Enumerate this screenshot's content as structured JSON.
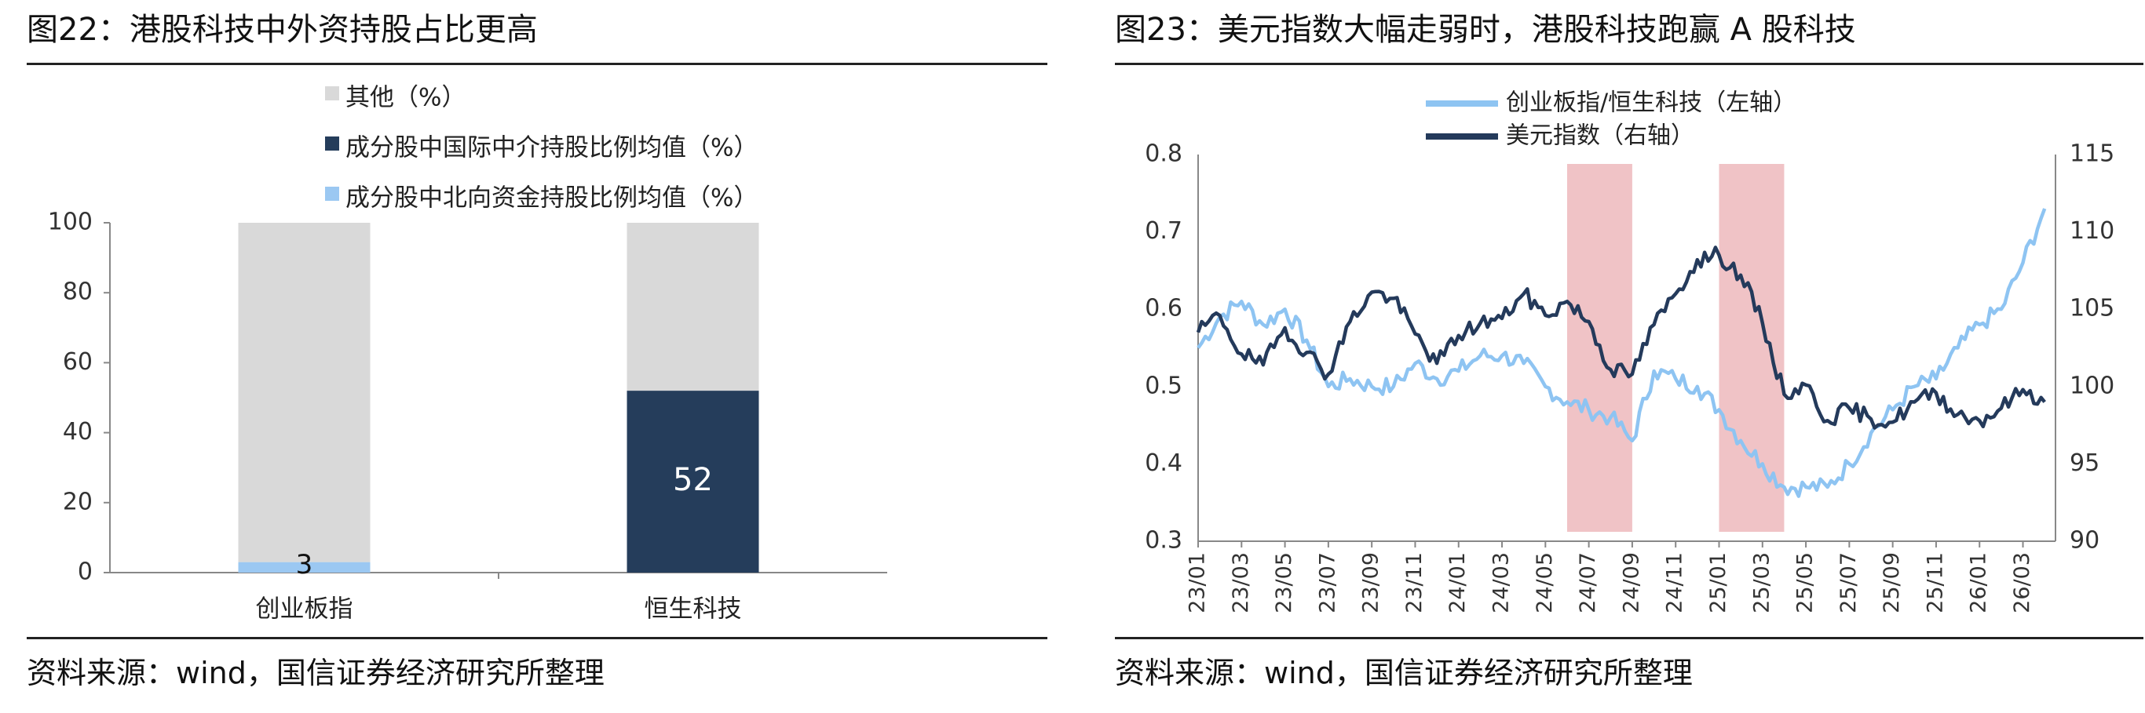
{
  "left_panel": {
    "figure_title": "图22：港股科技中外资持股占比更高",
    "source": "资料来源：wind，国信证券经济研究所整理",
    "chart_data": {
      "type": "bar",
      "stacked": true,
      "categories": [
        "创业板指",
        "恒生科技"
      ],
      "series": [
        {
          "name": "成分股中北向资金持股比例均值（%）",
          "values": [
            3,
            0
          ],
          "color": "#9bc8f2"
        },
        {
          "name": "成分股中国际中介持股比例均值（%）",
          "values": [
            0,
            52
          ],
          "color": "#253d5b"
        },
        {
          "name": "其他（%）",
          "values": [
            97,
            48
          ],
          "color": "#d9d9d9"
        }
      ],
      "legend_order": [
        "其他（%）",
        "成分股中国际中介持股比例均值（%）",
        "成分股中北向资金持股比例均值（%）"
      ],
      "data_labels": [
        {
          "category": "创业板指",
          "text": "3"
        },
        {
          "category": "恒生科技",
          "text": "52"
        }
      ],
      "ylim": [
        0,
        100
      ],
      "yticks": [
        "0",
        "20",
        "40",
        "60",
        "80",
        "100"
      ],
      "legend_position": "top",
      "grid": false
    }
  },
  "right_panel": {
    "figure_title": "图23：美元指数大幅走弱时，港股科技跑赢 A 股科技",
    "source": "资料来源：wind，国信证券经济研究所整理",
    "chart_data": {
      "type": "line",
      "x_ticks": [
        "23/01",
        "23/03",
        "23/05",
        "23/07",
        "23/09",
        "23/11",
        "24/01",
        "24/03",
        "24/05",
        "24/07",
        "24/09",
        "24/11",
        "25/01",
        "25/03",
        "25/05",
        "25/07",
        "25/09",
        "25/11",
        "26/01",
        "26/03"
      ],
      "left_axis": {
        "ylim": [
          0.3,
          0.8
        ],
        "ticks": [
          "0.3",
          "0.4",
          "0.5",
          "0.6",
          "0.7",
          "0.8"
        ]
      },
      "right_axis": {
        "ylim": [
          90,
          115
        ],
        "ticks": [
          "90",
          "95",
          "100",
          "105",
          "110",
          "115"
        ]
      },
      "legend_position": "top",
      "grid": false,
      "shaded_periods": [
        {
          "start": "24/06",
          "end": "24/09",
          "color": "#e8a3a8"
        },
        {
          "start": "25/01",
          "end": "25/04",
          "color": "#e8a3a8"
        }
      ],
      "series": [
        {
          "name": "创业板指/恒生科技（左轴）",
          "axis": "left",
          "color": "#8ec4f2",
          "x": [
            "2023-01",
            "2023-02",
            "2023-03",
            "2023-04",
            "2023-05",
            "2023-06",
            "2023-07",
            "2023-08",
            "2023-09",
            "2023-10",
            "2023-11",
            "2023-12",
            "2024-01",
            "2024-02",
            "2024-03",
            "2024-04",
            "2024-05",
            "2024-06",
            "2024-07",
            "2024-08",
            "2024-09",
            "2024-10",
            "2024-11",
            "2024-12",
            "2025-01",
            "2025-02",
            "2025-03",
            "2025-04",
            "2025-05",
            "2025-06",
            "2025-07",
            "2025-08",
            "2025-09",
            "2025-10",
            "2025-11",
            "2025-12",
            "2026-01",
            "2026-02",
            "2026-03",
            "2026-04"
          ],
          "y": [
            0.55,
            0.59,
            0.61,
            0.58,
            0.6,
            0.56,
            0.5,
            0.51,
            0.5,
            0.5,
            0.53,
            0.51,
            0.52,
            0.54,
            0.54,
            0.53,
            0.5,
            0.48,
            0.47,
            0.46,
            0.43,
            0.52,
            0.51,
            0.5,
            0.47,
            0.43,
            0.4,
            0.37,
            0.37,
            0.37,
            0.4,
            0.44,
            0.47,
            0.5,
            0.51,
            0.55,
            0.58,
            0.6,
            0.66,
            0.73
          ]
        },
        {
          "name": "美元指数（右轴）",
          "axis": "right",
          "color": "#243a5b",
          "x": [
            "2023-01",
            "2023-02",
            "2023-03",
            "2023-04",
            "2023-05",
            "2023-06",
            "2023-07",
            "2023-08",
            "2023-09",
            "2023-10",
            "2023-11",
            "2023-12",
            "2024-01",
            "2024-02",
            "2024-03",
            "2024-04",
            "2024-05",
            "2024-06",
            "2024-07",
            "2024-08",
            "2024-09",
            "2024-10",
            "2024-11",
            "2024-12",
            "2025-01",
            "2025-02",
            "2025-03",
            "2025-04",
            "2025-05",
            "2025-06",
            "2025-07",
            "2025-08",
            "2025-09",
            "2025-10",
            "2025-11",
            "2025-12",
            "2026-01",
            "2026-02",
            "2026-03",
            "2026-04"
          ],
          "y": [
            103.5,
            104.6,
            102.1,
            101.4,
            103.8,
            102.2,
            100.8,
            104.2,
            106.1,
            105.7,
            103.4,
            101.5,
            103.3,
            104.1,
            104.4,
            106.0,
            104.6,
            105.5,
            104.2,
            101.1,
            100.8,
            104.0,
            106.0,
            108.2,
            108.5,
            107.2,
            104.1,
            99.5,
            100.1,
            97.8,
            98.6,
            97.9,
            97.7,
            99.0,
            99.6,
            98.2,
            97.8,
            98.6,
            99.8,
            99.0
          ]
        }
      ]
    }
  }
}
